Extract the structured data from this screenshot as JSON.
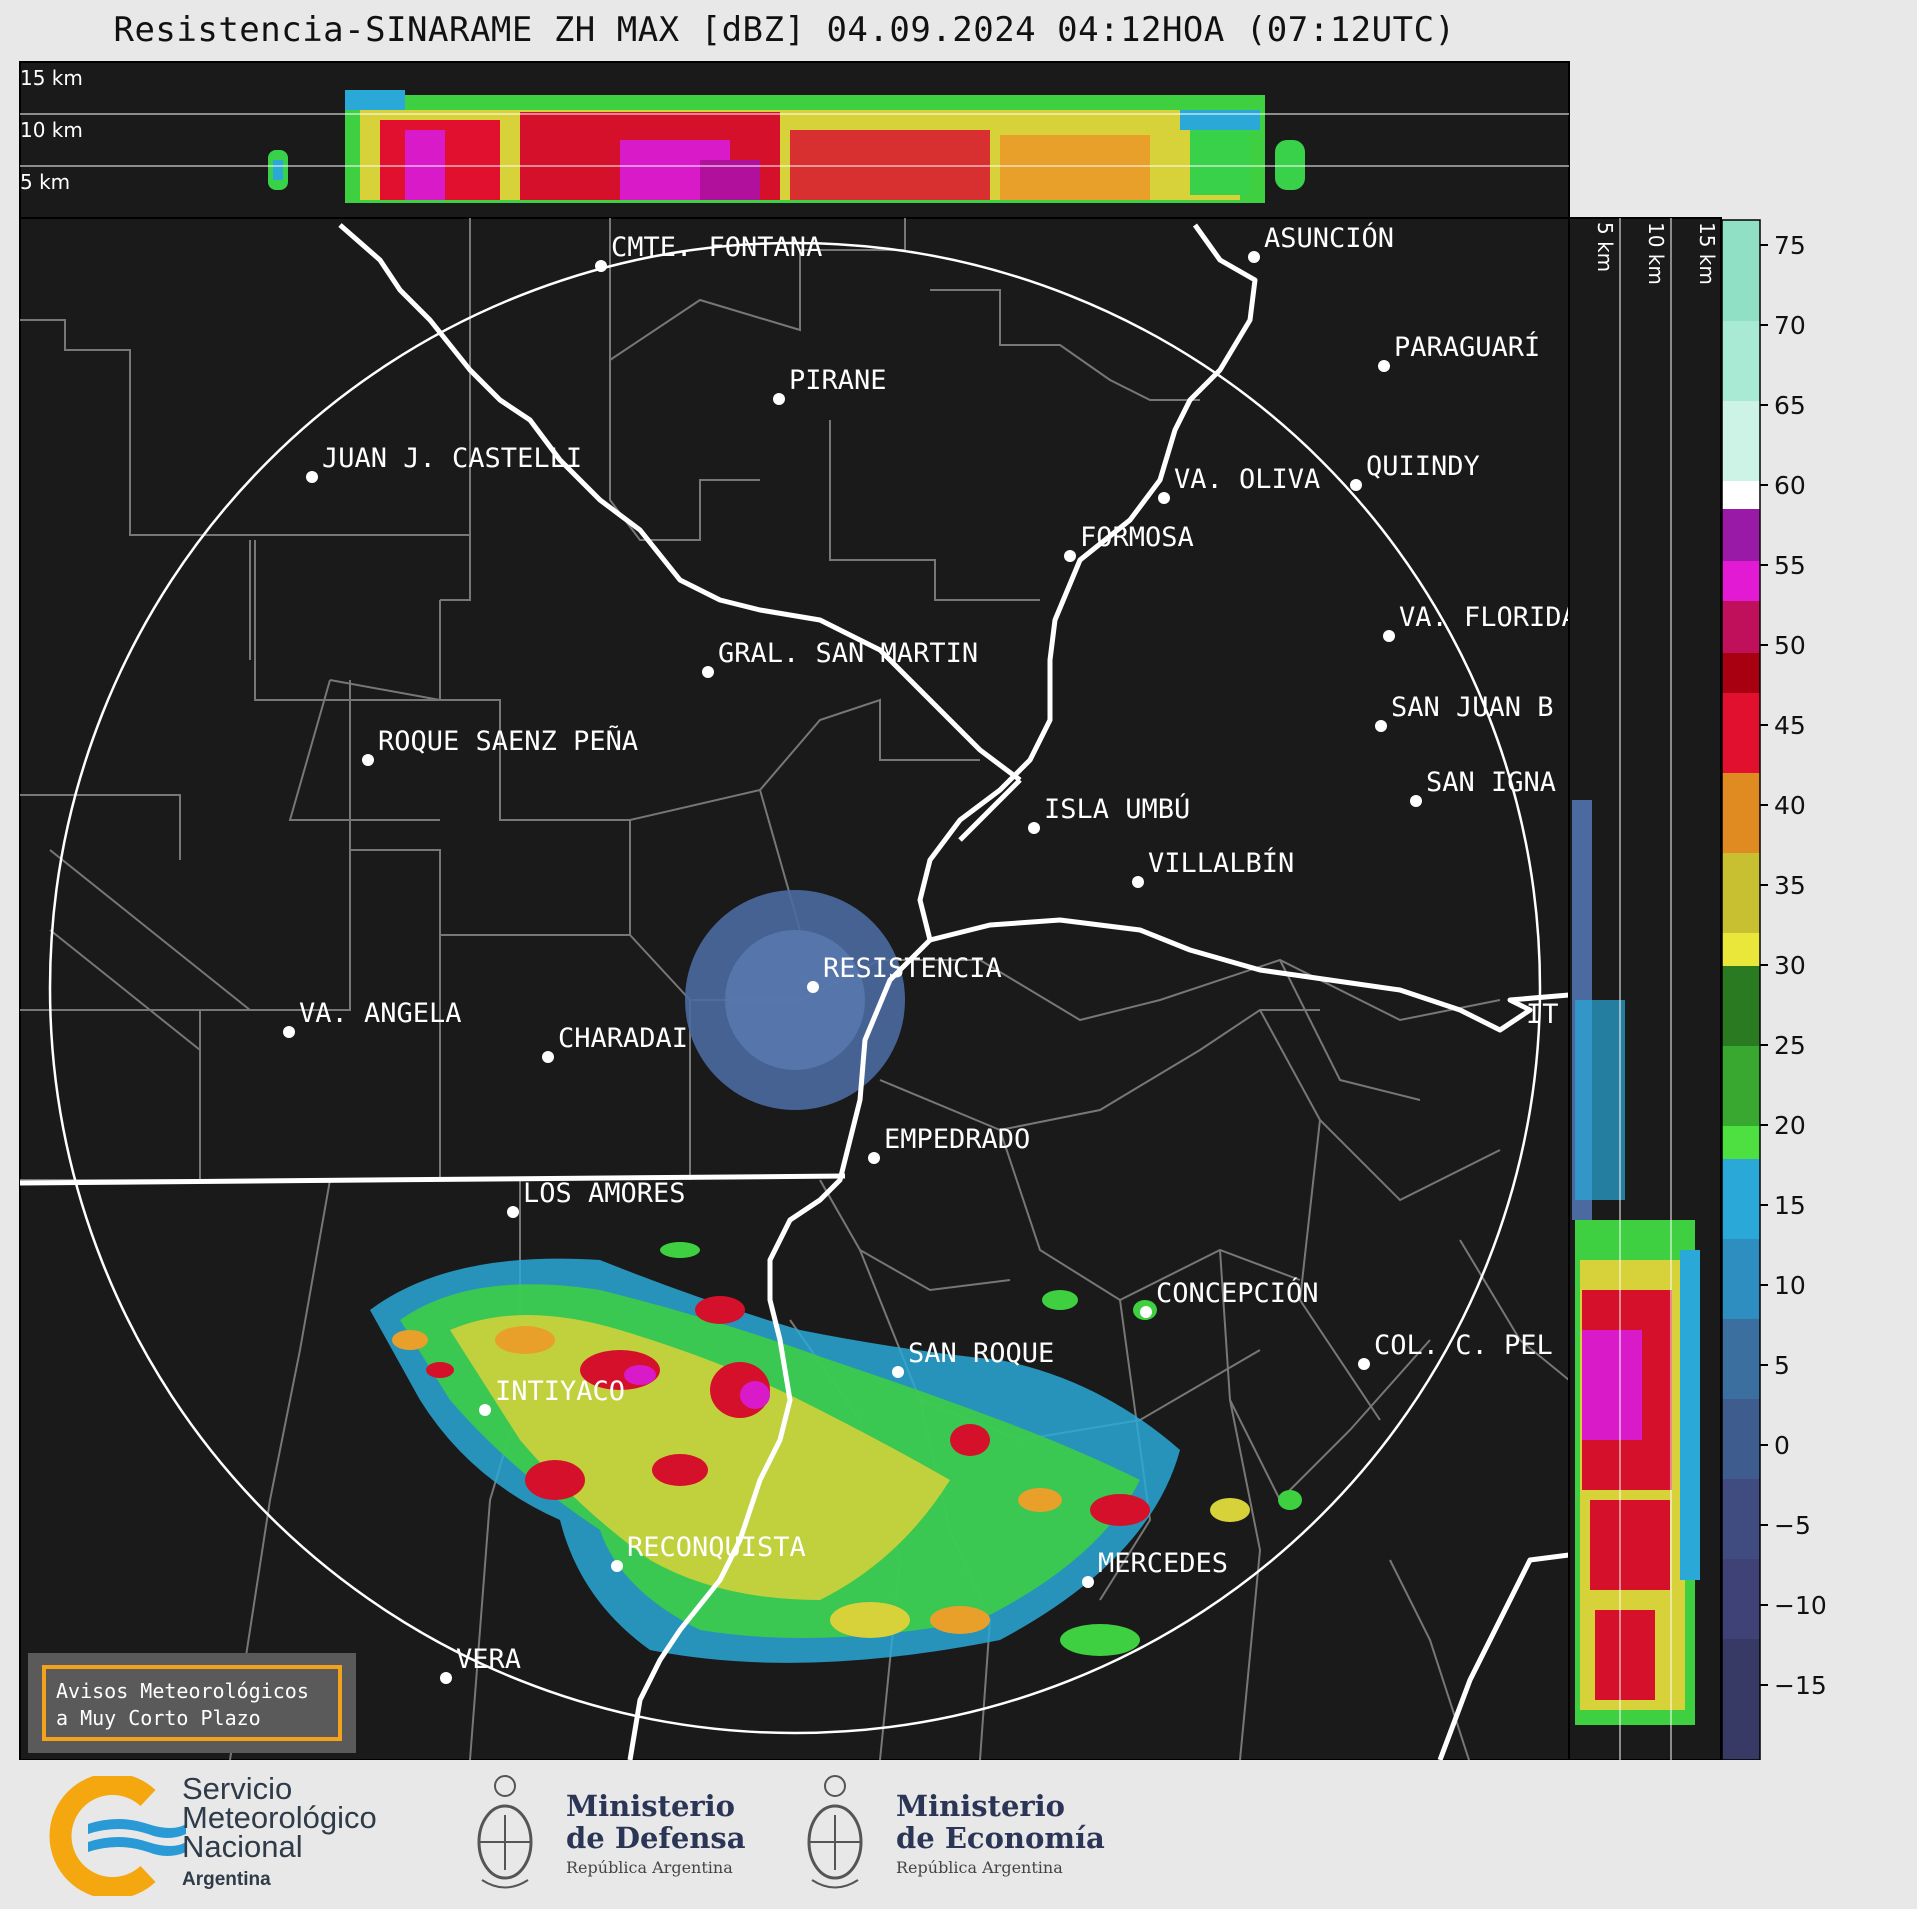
{
  "title": "Resistencia-SINARAME ZH MAX [dBZ] 04.09.2024 04:12HOA (07:12UTC)",
  "top_panel_km": [
    "15 km",
    "10 km",
    "5 km"
  ],
  "side_panel_km": [
    "5 km",
    "10 km",
    "15 km"
  ],
  "cities": [
    {
      "name": "CMTE. FONTANA"
    },
    {
      "name": "ASUNCIÓN"
    },
    {
      "name": "PIRANE"
    },
    {
      "name": "PARAGUARÍ"
    },
    {
      "name": "JUAN J. CASTELLI"
    },
    {
      "name": "QUIINDY"
    },
    {
      "name": "VA. OLIVA"
    },
    {
      "name": "FORMOSA"
    },
    {
      "name": "VA. FLORIDA"
    },
    {
      "name": "GRAL. SAN MARTIN"
    },
    {
      "name": "SAN JUAN B"
    },
    {
      "name": "ROQUE SAENZ PEÑA"
    },
    {
      "name": "SAN IGNA"
    },
    {
      "name": "ISLA UMBÚ"
    },
    {
      "name": "VILLALBÍN"
    },
    {
      "name": "RESISTENCIA"
    },
    {
      "name": "VA. ANGELA"
    },
    {
      "name": "CHARADAI"
    },
    {
      "name": "IT"
    },
    {
      "name": "EMPEDRADO"
    },
    {
      "name": "LOS AMORES"
    },
    {
      "name": "CONCEPCIÓN"
    },
    {
      "name": "COL. C. PEL"
    },
    {
      "name": "SAN ROQUE"
    },
    {
      "name": "INTIYACO"
    },
    {
      "name": "RECONQUISTA"
    },
    {
      "name": "MERCEDES"
    },
    {
      "name": "VERA"
    }
  ],
  "colorbar": {
    "ticks": [
      "75",
      "70",
      "65",
      "60",
      "55",
      "50",
      "45",
      "40",
      "35",
      "30",
      "25",
      "20",
      "15",
      "10",
      "5",
      "0",
      "−5",
      "−10",
      "−15"
    ]
  },
  "aviso": {
    "line1": "Avisos Meteorológicos",
    "line2": "a Muy Corto Plazo"
  },
  "footer": {
    "smn_line1": "Servicio",
    "smn_line2": "Meteorológico",
    "smn_line3": "Nacional",
    "smn_country": "Argentina",
    "defensa_line1": "Ministerio",
    "defensa_line2": "de Defensa",
    "defensa_sub": "República Argentina",
    "economia_line1": "Ministerio",
    "economia_line2": "de Economía",
    "economia_sub": "República Argentina"
  }
}
